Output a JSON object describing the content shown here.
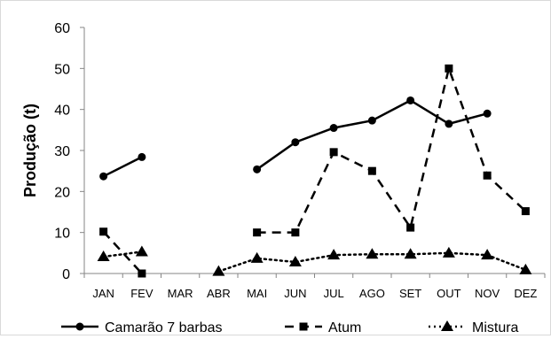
{
  "chart_data": {
    "type": "line",
    "title": "",
    "xlabel": "",
    "ylabel": "Produção (t)",
    "ylim": [
      0,
      60
    ],
    "yticks": [
      "0",
      "10",
      "20",
      "30",
      "40",
      "50",
      "60"
    ],
    "categories": [
      "JAN",
      "FEV",
      "MAR",
      "ABR",
      "MAI",
      "JUN",
      "JUL",
      "AGO",
      "SET",
      "OUT",
      "NOV",
      "DEZ"
    ],
    "grid": false,
    "legend_position": "bottom",
    "series": [
      {
        "name": "Camarão 7 barbas",
        "line_style": "solid",
        "marker": "circle",
        "color": "#000000",
        "values": [
          23.7,
          28.4,
          null,
          null,
          25.4,
          32.0,
          35.5,
          37.3,
          42.2,
          36.5,
          39.0,
          null
        ]
      },
      {
        "name": "Atum",
        "line_style": "dashed",
        "marker": "square",
        "color": "#000000",
        "values": [
          10.2,
          0.0,
          null,
          null,
          10.0,
          10.0,
          29.6,
          25.0,
          11.2,
          50.0,
          23.9,
          15.2
        ]
      },
      {
        "name": "Mistura",
        "line_style": "dotted",
        "marker": "triangle",
        "color": "#000000",
        "values": [
          4.1,
          5.3,
          null,
          0.5,
          3.7,
          2.8,
          4.5,
          4.7,
          4.7,
          5.0,
          4.5,
          0.9
        ]
      }
    ]
  }
}
